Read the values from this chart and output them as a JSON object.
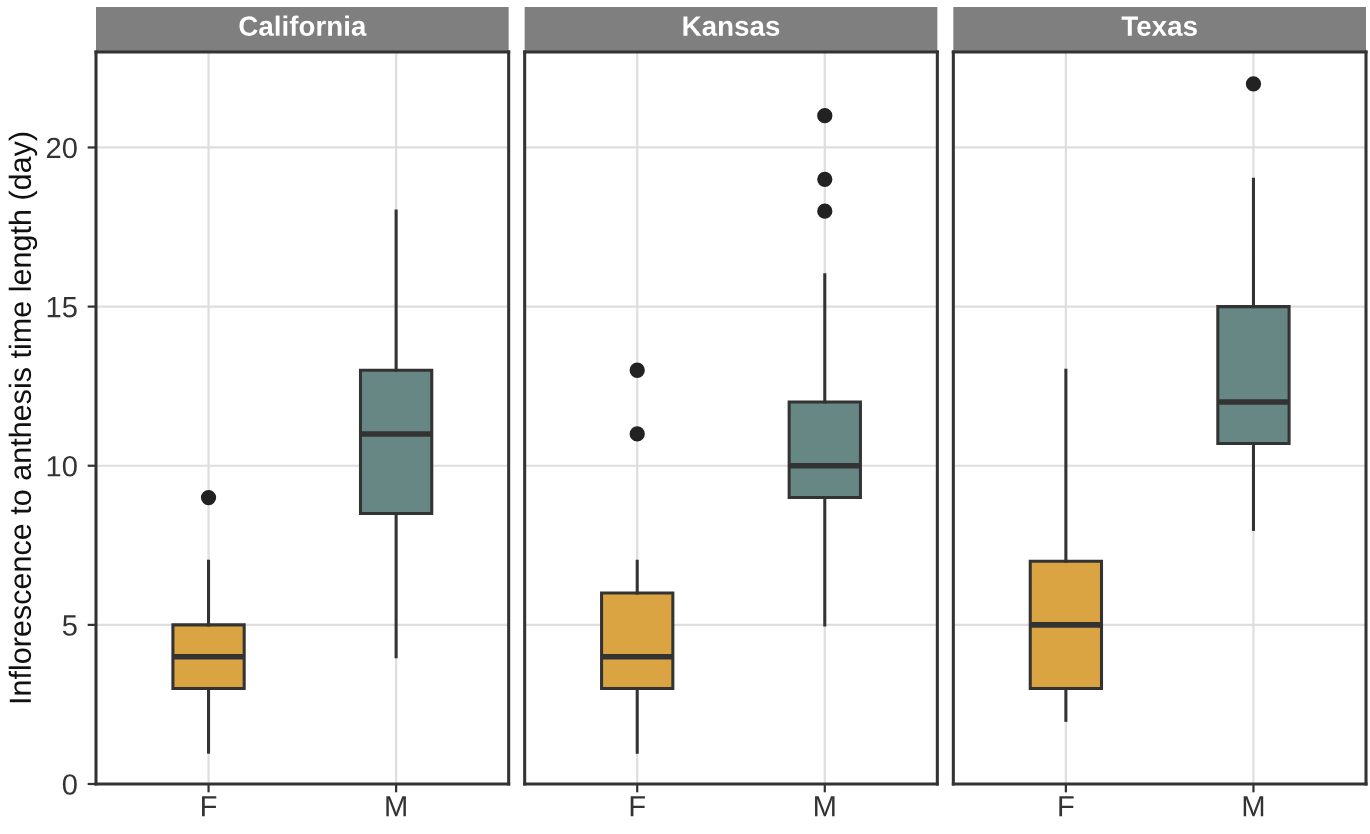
{
  "chart_data": [
    {
      "type": "box",
      "title": "California",
      "ylabel": "Inflorescence to anthesis time length (day)",
      "categories": [
        "F",
        "M"
      ],
      "colors": [
        "#d9a441",
        "#668784"
      ],
      "ylim": [
        0,
        23
      ],
      "yticks": [
        0,
        5,
        10,
        15,
        20
      ],
      "grid": true,
      "boxes": [
        {
          "low": 1,
          "q1": 3,
          "median": 4,
          "q3": 5,
          "high": 7,
          "outliers": [
            9
          ]
        },
        {
          "low": 4,
          "q1": 8.5,
          "median": 11,
          "q3": 13,
          "high": 18
        }
      ]
    },
    {
      "type": "box",
      "title": "Kansas",
      "categories": [
        "F",
        "M"
      ],
      "colors": [
        "#d9a441",
        "#668784"
      ],
      "ylim": [
        0,
        23
      ],
      "yticks": [
        0,
        5,
        10,
        15,
        20
      ],
      "grid": true,
      "tick_labels": "x",
      "boxes": [
        {
          "low": 1,
          "q1": 3,
          "median": 4,
          "q3": 6,
          "high": 7,
          "outliers": [
            11,
            13
          ]
        },
        {
          "low": 5,
          "q1": 9,
          "median": 10,
          "q3": 12,
          "high": 16,
          "outliers": [
            18,
            19,
            21
          ]
        }
      ]
    },
    {
      "type": "box",
      "title": "Texas",
      "categories": [
        "F",
        "M"
      ],
      "colors": [
        "#d9a441",
        "#668784"
      ],
      "ylim": [
        0,
        23
      ],
      "yticks": [
        0,
        5,
        10,
        15,
        20
      ],
      "grid": true,
      "tick_labels": "x",
      "boxes": [
        {
          "low": 2,
          "q1": 3,
          "median": 5,
          "q3": 7,
          "high": 13
        },
        {
          "low": 8,
          "q1": 10.7,
          "median": 12,
          "q3": 15,
          "high": 19,
          "outliers": [
            22
          ]
        }
      ]
    }
  ]
}
